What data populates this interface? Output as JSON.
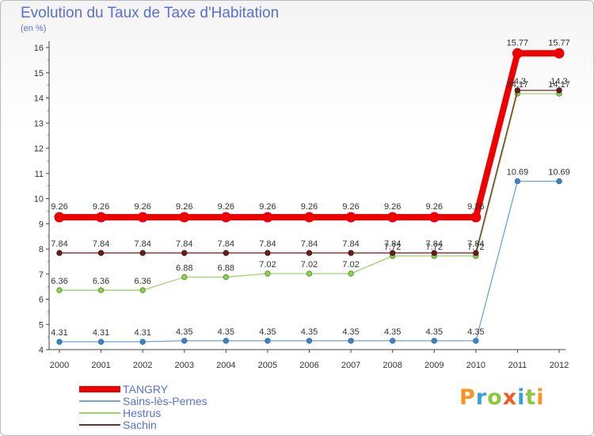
{
  "title": "Evolution du Taux de Taxe d'Habitation",
  "subtitle": "(en %)",
  "logo": {
    "letters": [
      "P",
      "r",
      "o",
      "x",
      "i",
      "t",
      "i"
    ],
    "colors": [
      "#f7931e",
      "#3aa0db",
      "#8dc63f",
      "#f15a24",
      "#3aa0db",
      "#8dc63f",
      "#f7931e"
    ]
  },
  "chart_data": {
    "type": "line",
    "title": "Evolution du Taux de Taxe d'Habitation",
    "ylabel": "(en %)",
    "x": [
      "2000",
      "2001",
      "2002",
      "2003",
      "2004",
      "2005",
      "2006",
      "2007",
      "2008",
      "2009",
      "2010",
      "2011",
      "2012"
    ],
    "ylim": [
      4,
      16
    ],
    "yticks": [
      "4",
      "5",
      "6",
      "7",
      "8",
      "9",
      "10",
      "11",
      "12",
      "13",
      "14",
      "15",
      "16"
    ],
    "grid": false,
    "legend_position": "bottom-left",
    "series": [
      {
        "name": "TANGRY",
        "color": "#ee0000",
        "values": [
          9.26,
          9.26,
          9.26,
          9.26,
          9.26,
          9.26,
          9.26,
          9.26,
          9.26,
          9.26,
          9.26,
          15.77,
          15.77
        ],
        "labels": [
          "9.26",
          "9.26",
          "9.26",
          "9.26",
          "9.26",
          "9.26",
          "9.26",
          "9.26",
          "9.26",
          "9.26",
          "9.26",
          "15.77",
          "15.77"
        ]
      },
      {
        "name": "Sains-lès-Pernes",
        "color": "#6aa6d6",
        "values": [
          4.31,
          4.31,
          4.31,
          4.35,
          4.35,
          4.35,
          4.35,
          4.35,
          4.35,
          4.35,
          4.35,
          10.69,
          10.69
        ],
        "labels": [
          "4.31",
          "4.31",
          "4.31",
          "4.35",
          "4.35",
          "4.35",
          "4.35",
          "4.35",
          "4.35",
          "4.35",
          "4.35",
          "10.69",
          "10.69"
        ]
      },
      {
        "name": "Hestrus",
        "color": "#9ed46c",
        "values": [
          6.36,
          6.36,
          6.36,
          6.88,
          6.88,
          7.02,
          7.02,
          7.02,
          7.72,
          7.72,
          7.72,
          14.17,
          14.17
        ],
        "labels": [
          "6.36",
          "6.36",
          "6.36",
          "6.88",
          "6.88",
          "7.02",
          "7.02",
          "7.02",
          "7.72",
          "7.72",
          "7.72",
          "14.17",
          "14.17"
        ]
      },
      {
        "name": "Sachin",
        "color": "#7a2a2a",
        "values": [
          7.84,
          7.84,
          7.84,
          7.84,
          7.84,
          7.84,
          7.84,
          7.84,
          7.84,
          7.84,
          7.84,
          14.3,
          14.3
        ],
        "labels": [
          "7.84",
          "7.84",
          "7.84",
          "7.84",
          "7.84",
          "7.84",
          "7.84",
          "7.84",
          "7.84",
          "7.84",
          "7.84",
          "14.3",
          "14.3"
        ]
      }
    ]
  }
}
